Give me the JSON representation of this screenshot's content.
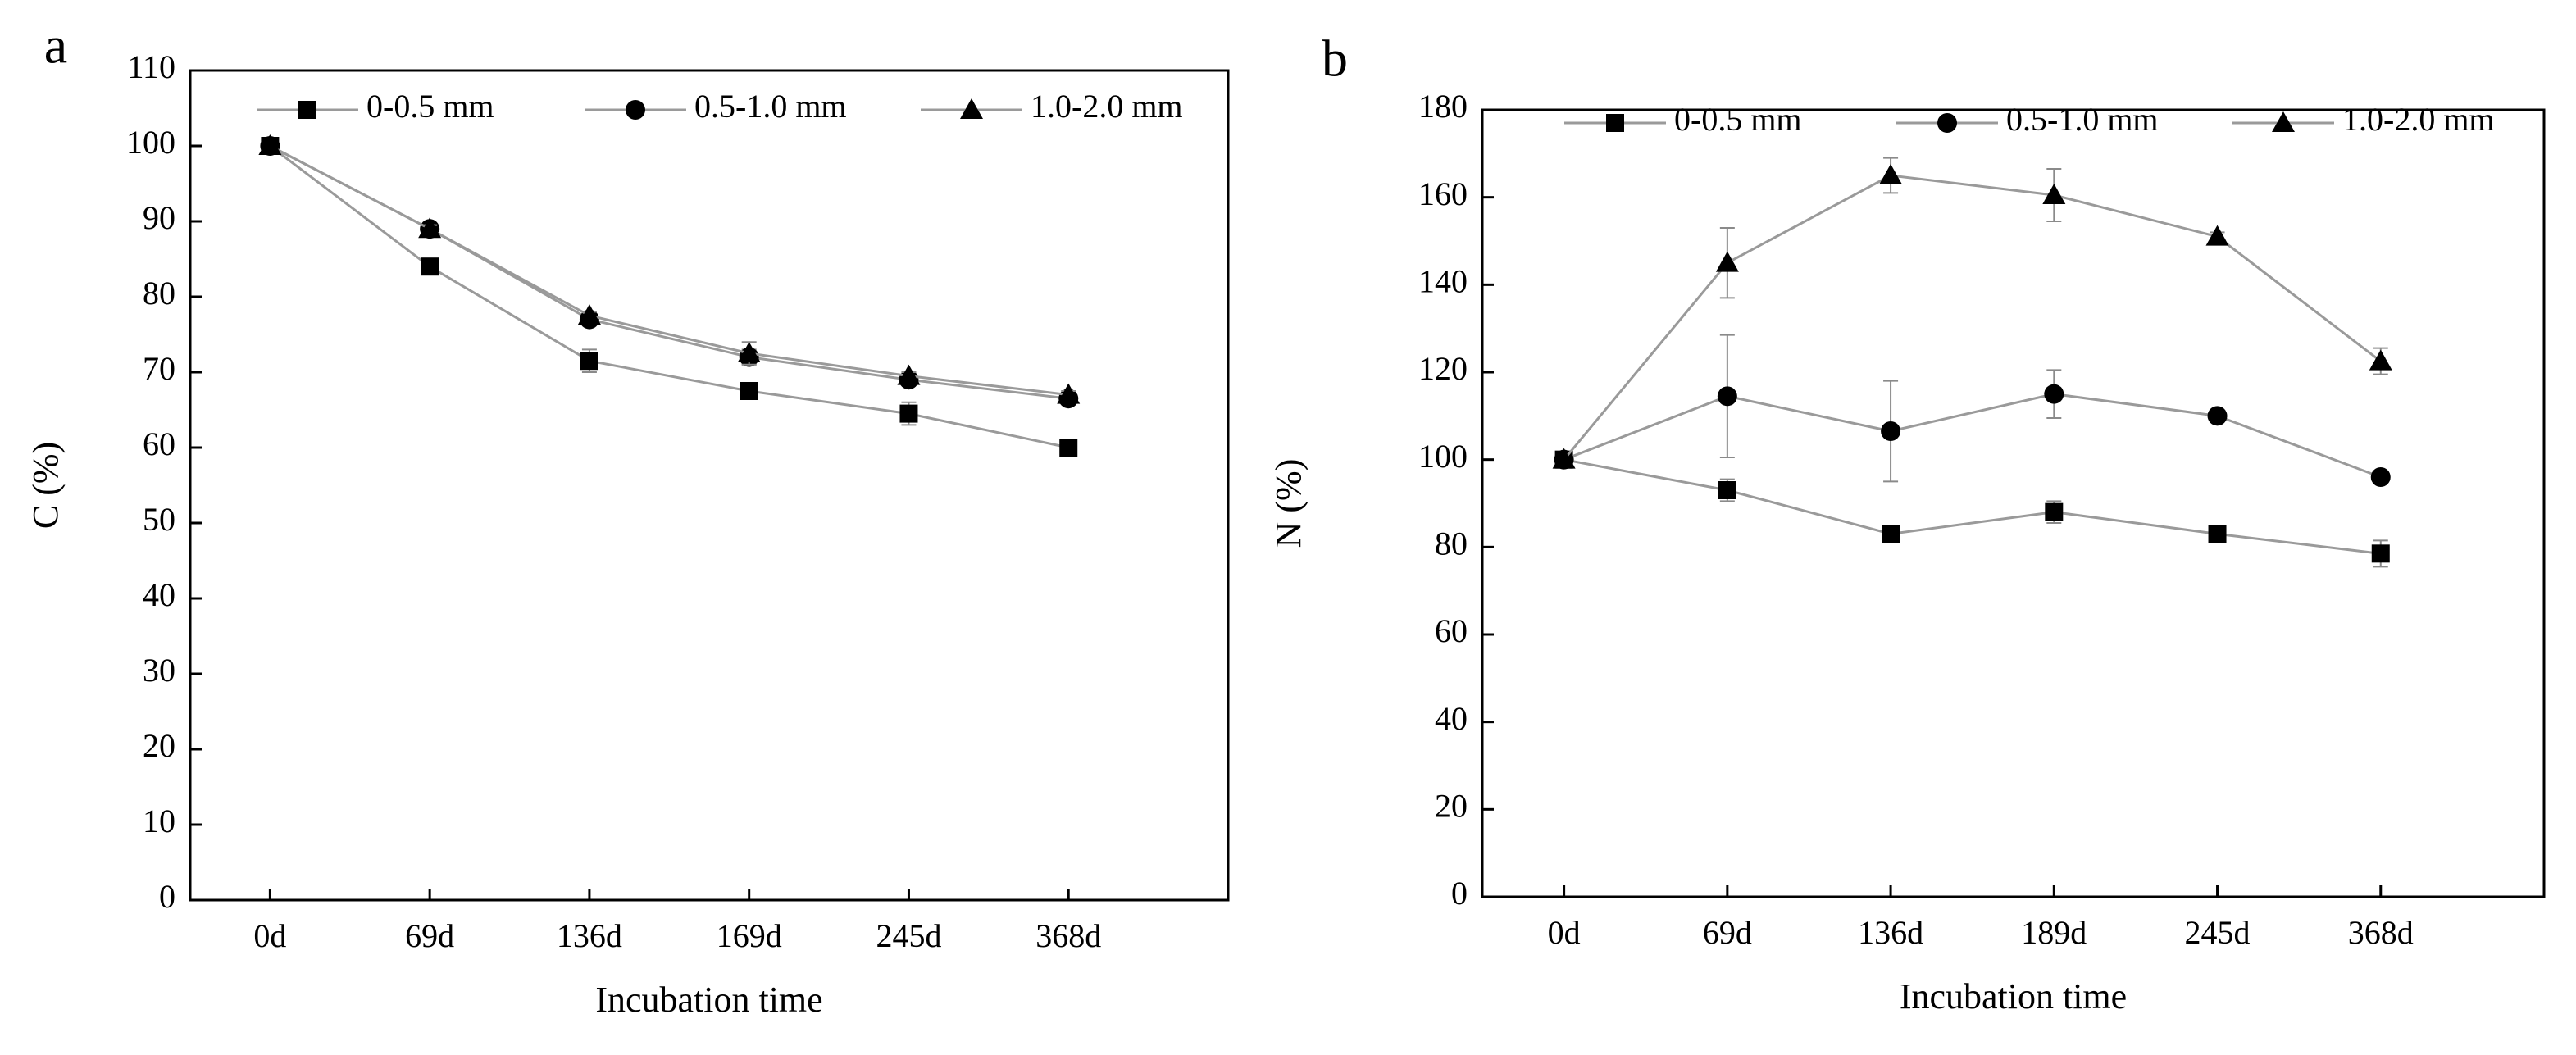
{
  "chart_data": [
    {
      "type": "line",
      "panel_label": "a",
      "xlabel": "Incubation time",
      "ylabel": "C (%)",
      "categories": [
        "0d",
        "69d",
        "136d",
        "169d",
        "245d",
        "368d"
      ],
      "ylim": [
        0,
        110
      ],
      "yticks": [
        0,
        10,
        20,
        30,
        40,
        50,
        60,
        70,
        80,
        90,
        100,
        110
      ],
      "legend_position": "top-right",
      "grid": false,
      "series": [
        {
          "name": "0-0.5 mm",
          "marker": "square",
          "values": [
            100,
            84,
            71.5,
            67.5,
            64.5,
            60
          ],
          "errors": [
            0,
            1,
            1.5,
            1,
            1.5,
            1
          ]
        },
        {
          "name": "0.5-1.0 mm",
          "marker": "circle",
          "values": [
            100,
            89,
            77,
            72,
            69,
            66.5
          ],
          "errors": [
            0,
            0.5,
            0.5,
            1,
            0.5,
            0.5
          ]
        },
        {
          "name": "1.0-2.0 mm",
          "marker": "triangle",
          "values": [
            100,
            89,
            77.5,
            72.5,
            69.5,
            67
          ],
          "errors": [
            0,
            0.5,
            0.5,
            1.5,
            0.5,
            0.5
          ]
        }
      ]
    },
    {
      "type": "line",
      "panel_label": "b",
      "xlabel": "Incubation time",
      "ylabel": "N (%)",
      "categories": [
        "0d",
        "69d",
        "136d",
        "189d",
        "245d",
        "368d"
      ],
      "ylim": [
        0,
        180
      ],
      "yticks": [
        0,
        20,
        40,
        60,
        80,
        100,
        120,
        140,
        160,
        180
      ],
      "legend_position": "top-right",
      "grid": false,
      "series": [
        {
          "name": "0-0.5 mm",
          "marker": "square",
          "values": [
            100,
            93,
            83,
            88,
            83,
            78.5
          ],
          "errors": [
            0,
            2.5,
            1.5,
            2.5,
            1.5,
            3
          ]
        },
        {
          "name": "0.5-1.0 mm",
          "marker": "circle",
          "values": [
            100,
            114.5,
            106.5,
            115,
            110,
            96
          ],
          "errors": [
            0,
            14,
            11.5,
            5.5,
            1,
            1
          ]
        },
        {
          "name": "1.0-2.0 mm",
          "marker": "triangle",
          "values": [
            100,
            145,
            165,
            160.5,
            151,
            122.5
          ],
          "errors": [
            0,
            8,
            4,
            6,
            1,
            3
          ]
        }
      ]
    }
  ]
}
